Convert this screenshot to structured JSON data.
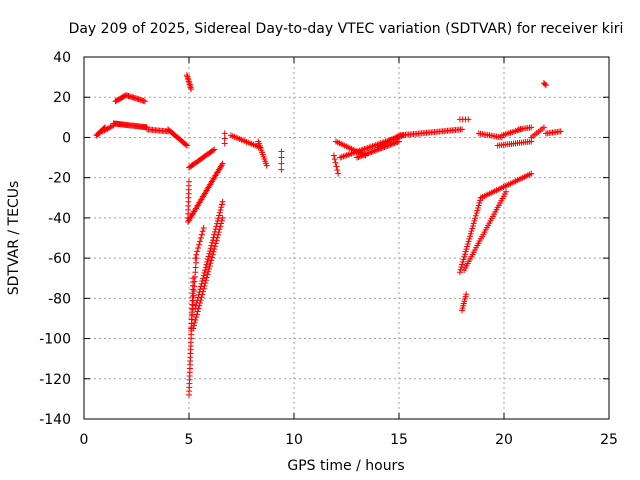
{
  "chart_data": {
    "type": "scatter",
    "title": "Day 209 of 2025, Sidereal Day-to-day VTEC variation (SDTVAR) for receiver kiri",
    "xlabel": "GPS time / hours",
    "ylabel": "SDTVAR / TECUs",
    "xlim": [
      0,
      25
    ],
    "ylim": [
      -140,
      40
    ],
    "x_ticks": [
      0,
      5,
      10,
      15,
      20,
      25
    ],
    "y_ticks": [
      -140,
      -120,
      -100,
      -80,
      -60,
      -40,
      -20,
      0,
      20,
      40
    ],
    "x_tick_labels": [
      "0",
      "5",
      "10",
      "15",
      "20",
      "25"
    ],
    "y_tick_labels": [
      "-140",
      "-120",
      "-100",
      "-80",
      "-60",
      "-40",
      "-20",
      "0",
      "20",
      "40"
    ],
    "grid": true,
    "marker": "plus",
    "color": "#ff0000",
    "segments": [
      {
        "x0": 0.6,
        "y0": 1,
        "x1": 1.0,
        "y1": 5,
        "n": 12
      },
      {
        "x0": 0.9,
        "y0": 3,
        "x1": 1.4,
        "y1": 6,
        "n": 8
      },
      {
        "x0": 1.4,
        "y0": 7,
        "x1": 3.0,
        "y1": 5,
        "n": 34
      },
      {
        "x0": 1.5,
        "y0": 18,
        "x1": 2.0,
        "y1": 21,
        "n": 10
      },
      {
        "x0": 2.0,
        "y0": 21,
        "x1": 2.9,
        "y1": 18,
        "n": 16
      },
      {
        "x0": 3.0,
        "y0": 4,
        "x1": 4.0,
        "y1": 3,
        "n": 16
      },
      {
        "x0": 4.0,
        "y0": 4,
        "x1": 4.9,
        "y1": -4,
        "n": 18
      },
      {
        "x0": 4.9,
        "y0": 31,
        "x1": 5.1,
        "y1": 24,
        "n": 10
      },
      {
        "x0": 4.95,
        "y0": -40,
        "x1": 5.0,
        "y1": -22,
        "n": 10
      },
      {
        "x0": 5.0,
        "y0": -128,
        "x1": 5.2,
        "y1": -70,
        "n": 32
      },
      {
        "x0": 5.1,
        "y0": -95,
        "x1": 5.35,
        "y1": -60,
        "n": 16
      },
      {
        "x0": 5.3,
        "y0": -85,
        "x1": 6.6,
        "y1": -32,
        "n": 40
      },
      {
        "x0": 5.2,
        "y0": -95,
        "x1": 6.6,
        "y1": -40,
        "n": 40
      },
      {
        "x0": 5.3,
        "y0": -60,
        "x1": 5.7,
        "y1": -45,
        "n": 10
      },
      {
        "x0": 5.0,
        "y0": -15,
        "x1": 6.2,
        "y1": -6,
        "n": 22
      },
      {
        "x0": 4.95,
        "y0": -42,
        "x1": 6.6,
        "y1": -13,
        "n": 40
      },
      {
        "x0": 6.7,
        "y0": 2,
        "x1": 6.7,
        "y1": -3,
        "n": 3
      },
      {
        "x0": 7.0,
        "y0": 1,
        "x1": 8.4,
        "y1": -5,
        "n": 18
      },
      {
        "x0": 8.3,
        "y0": -2,
        "x1": 8.7,
        "y1": -14,
        "n": 12
      },
      {
        "x0": 9.4,
        "y0": -7,
        "x1": 9.4,
        "y1": -16,
        "n": 4
      },
      {
        "x0": 11.9,
        "y0": -9,
        "x1": 12.1,
        "y1": -18,
        "n": 6
      },
      {
        "x0": 12.0,
        "y0": -2,
        "x1": 13.4,
        "y1": -9,
        "n": 18
      },
      {
        "x0": 12.2,
        "y0": -10,
        "x1": 15.2,
        "y1": 1,
        "n": 40
      },
      {
        "x0": 13.0,
        "y0": -10,
        "x1": 15.0,
        "y1": -2,
        "n": 30
      },
      {
        "x0": 14.0,
        "y0": -5,
        "x1": 15.0,
        "y1": 1,
        "n": 12
      },
      {
        "x0": 15.0,
        "y0": 1,
        "x1": 18.0,
        "y1": 4,
        "n": 40
      },
      {
        "x0": 17.9,
        "y0": 9,
        "x1": 18.3,
        "y1": 9,
        "n": 4
      },
      {
        "x0": 18.0,
        "y0": -86,
        "x1": 18.2,
        "y1": -78,
        "n": 8
      },
      {
        "x0": 17.9,
        "y0": -67,
        "x1": 18.9,
        "y1": -30,
        "n": 30
      },
      {
        "x0": 18.1,
        "y0": -66,
        "x1": 20.1,
        "y1": -27,
        "n": 36
      },
      {
        "x0": 18.9,
        "y0": -30,
        "x1": 21.3,
        "y1": -18,
        "n": 30
      },
      {
        "x0": 18.8,
        "y0": 2,
        "x1": 19.9,
        "y1": 0,
        "n": 14
      },
      {
        "x0": 19.9,
        "y0": 1,
        "x1": 20.8,
        "y1": 4,
        "n": 12
      },
      {
        "x0": 19.7,
        "y0": -4,
        "x1": 21.3,
        "y1": -2,
        "n": 18
      },
      {
        "x0": 20.7,
        "y0": 4,
        "x1": 21.3,
        "y1": 5,
        "n": 8
      },
      {
        "x0": 21.3,
        "y0": 0,
        "x1": 21.9,
        "y1": 5,
        "n": 8
      },
      {
        "x0": 21.9,
        "y0": 27,
        "x1": 22.0,
        "y1": 26,
        "n": 3
      },
      {
        "x0": 22.0,
        "y0": 2,
        "x1": 22.7,
        "y1": 3,
        "n": 10
      }
    ]
  }
}
